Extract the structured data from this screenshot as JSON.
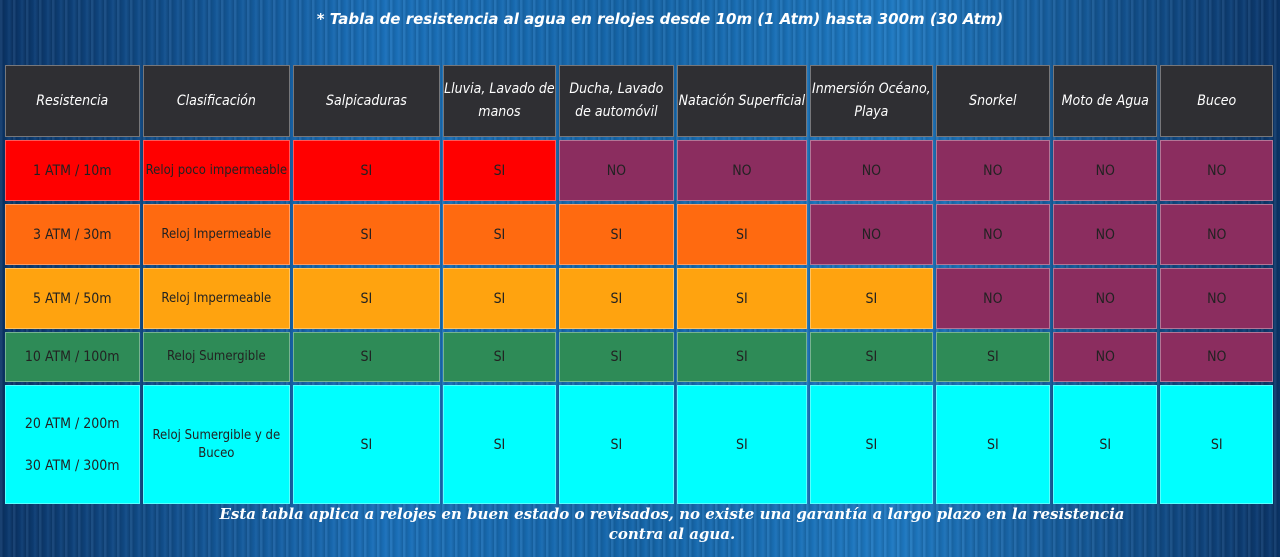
{
  "title": "* Tabla de resistencia al agua en relojes desde 10m (1 Atm) hasta 300m (30 Atm)",
  "footnote": "Esta tabla aplica a relojes en buen estado o revisados, no existe una garantía a largo plazo en la resistencia contra al agua.",
  "colors": {
    "header": "#2f2f33",
    "row_1atm": "#ff0000",
    "row_3atm": "#ff6a10",
    "row_5atm": "#ffa30f",
    "row_10atm": "#2e8b57",
    "row_20atm": "#00ffff",
    "no": "#8b2d5f"
  },
  "chart_data": {
    "type": "table",
    "columns": [
      "Resistencia",
      "Clasificación",
      "Salpicaduras",
      "Lluvia, Lavado de manos",
      "Ducha, Lavado de automóvil",
      "Natación Superficial",
      "Inmersión Océano, Playa",
      "Snorkel",
      "Moto de Agua",
      "Buceo"
    ],
    "rows": [
      {
        "resistencia": [
          "1 ATM / 10m"
        ],
        "clasificacion": "Reloj poco impermeable",
        "values": [
          "SI",
          "SI",
          "NO",
          "NO",
          "NO",
          "NO",
          "NO",
          "NO"
        ]
      },
      {
        "resistencia": [
          "3 ATM / 30m"
        ],
        "clasificacion": "Reloj Impermeable",
        "values": [
          "SI",
          "SI",
          "SI",
          "SI",
          "NO",
          "NO",
          "NO",
          "NO"
        ]
      },
      {
        "resistencia": [
          "5 ATM / 50m"
        ],
        "clasificacion": "Reloj Impermeable",
        "values": [
          "SI",
          "SI",
          "SI",
          "SI",
          "SI",
          "NO",
          "NO",
          "NO"
        ]
      },
      {
        "resistencia": [
          "10 ATM / 100m"
        ],
        "clasificacion": "Reloj Sumergible",
        "values": [
          "SI",
          "SI",
          "SI",
          "SI",
          "SI",
          "SI",
          "NO",
          "NO"
        ]
      },
      {
        "resistencia": [
          "20 ATM / 200m",
          "30 ATM / 300m"
        ],
        "clasificacion": "Reloj Sumergible y de Buceo",
        "values": [
          "SI",
          "SI",
          "SI",
          "SI",
          "SI",
          "SI",
          "SI",
          "SI"
        ]
      }
    ]
  }
}
